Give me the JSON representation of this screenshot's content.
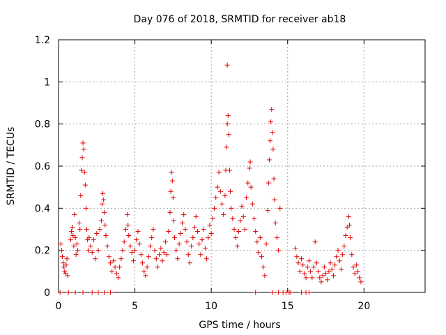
{
  "chart_data": {
    "type": "scatter",
    "title": "Day 076 of 2018, SRMTID for receiver ab18",
    "xlabel": "GPS time / hours",
    "ylabel": "SRMTID / TECUs",
    "xlim": [
      0,
      24
    ],
    "ylim": [
      0,
      1.2
    ],
    "xticks": [
      0,
      5,
      10,
      15,
      20
    ],
    "yticks": [
      0,
      0.2,
      0.4,
      0.6,
      0.8,
      1,
      1.2
    ],
    "xtick_labels": [
      "0",
      "5",
      "10",
      "15",
      "20"
    ],
    "ytick_labels": [
      "0",
      "0.2",
      "0.4",
      "0.6",
      "0.8",
      "1",
      "1.2"
    ],
    "grid": true,
    "marker": "+",
    "color": "#e00000",
    "series": [
      {
        "name": "SRMTID",
        "points": [
          [
            0.15,
            0.23
          ],
          [
            0.2,
            0.2
          ],
          [
            0.25,
            0.17
          ],
          [
            0.3,
            0.14
          ],
          [
            0.35,
            0.12
          ],
          [
            0.4,
            0.1
          ],
          [
            0.45,
            0.09
          ],
          [
            0.5,
            0.13
          ],
          [
            0.55,
            0.16
          ],
          [
            0.6,
            0.08
          ],
          [
            0.8,
            0.25
          ],
          [
            0.85,
            0.29
          ],
          [
            0.9,
            0.31
          ],
          [
            0.95,
            0.27
          ],
          [
            1.0,
            0.22
          ],
          [
            1.05,
            0.37
          ],
          [
            1.1,
            0.26
          ],
          [
            1.15,
            0.18
          ],
          [
            1.2,
            0.23
          ],
          [
            1.25,
            0.2
          ],
          [
            1.35,
            0.33
          ],
          [
            1.4,
            0.3
          ],
          [
            1.45,
            0.46
          ],
          [
            1.5,
            0.58
          ],
          [
            1.55,
            0.64
          ],
          [
            1.6,
            0.71
          ],
          [
            1.65,
            0.68
          ],
          [
            1.7,
            0.57
          ],
          [
            1.75,
            0.51
          ],
          [
            1.8,
            0.4
          ],
          [
            1.85,
            0.3
          ],
          [
            1.9,
            0.25
          ],
          [
            1.95,
            0.2
          ],
          [
            2.0,
            0.26
          ],
          [
            2.1,
            0.22
          ],
          [
            2.2,
            0.19
          ],
          [
            2.3,
            0.25
          ],
          [
            2.4,
            0.16
          ],
          [
            2.5,
            0.28
          ],
          [
            2.6,
            0.2
          ],
          [
            2.7,
            0.3
          ],
          [
            2.8,
            0.34
          ],
          [
            2.85,
            0.42
          ],
          [
            2.9,
            0.47
          ],
          [
            2.95,
            0.44
          ],
          [
            3.0,
            0.38
          ],
          [
            3.05,
            0.32
          ],
          [
            3.1,
            0.27
          ],
          [
            3.2,
            0.22
          ],
          [
            3.3,
            0.17
          ],
          [
            3.4,
            0.14
          ],
          [
            3.5,
            0.1
          ],
          [
            3.6,
            0.15
          ],
          [
            3.7,
            0.12
          ],
          [
            3.8,
            0.09
          ],
          [
            3.9,
            0.07
          ],
          [
            4.0,
            0.12
          ],
          [
            4.1,
            0.16
          ],
          [
            4.2,
            0.2
          ],
          [
            4.3,
            0.24
          ],
          [
            4.4,
            0.3
          ],
          [
            4.5,
            0.37
          ],
          [
            4.55,
            0.32
          ],
          [
            4.6,
            0.27
          ],
          [
            4.7,
            0.22
          ],
          [
            4.8,
            0.19
          ],
          [
            4.9,
            0.15
          ],
          [
            5.0,
            0.2
          ],
          [
            5.1,
            0.25
          ],
          [
            5.2,
            0.29
          ],
          [
            5.3,
            0.23
          ],
          [
            5.4,
            0.18
          ],
          [
            5.5,
            0.14
          ],
          [
            5.6,
            0.1
          ],
          [
            5.7,
            0.08
          ],
          [
            5.8,
            0.12
          ],
          [
            5.9,
            0.17
          ],
          [
            6.0,
            0.22
          ],
          [
            6.1,
            0.26
          ],
          [
            6.2,
            0.3
          ],
          [
            6.3,
            0.2
          ],
          [
            6.4,
            0.16
          ],
          [
            6.5,
            0.12
          ],
          [
            6.6,
            0.18
          ],
          [
            6.7,
            0.21
          ],
          [
            6.8,
            0.15
          ],
          [
            6.9,
            0.19
          ],
          [
            7.0,
            0.24
          ],
          [
            7.1,
            0.18
          ],
          [
            7.2,
            0.29
          ],
          [
            7.3,
            0.38
          ],
          [
            7.35,
            0.48
          ],
          [
            7.4,
            0.57
          ],
          [
            7.45,
            0.53
          ],
          [
            7.5,
            0.45
          ],
          [
            7.55,
            0.34
          ],
          [
            7.6,
            0.26
          ],
          [
            7.7,
            0.2
          ],
          [
            7.8,
            0.16
          ],
          [
            7.9,
            0.23
          ],
          [
            8.0,
            0.28
          ],
          [
            8.1,
            0.33
          ],
          [
            8.2,
            0.37
          ],
          [
            8.3,
            0.3
          ],
          [
            8.4,
            0.24
          ],
          [
            8.5,
            0.18
          ],
          [
            8.6,
            0.14
          ],
          [
            8.7,
            0.22
          ],
          [
            8.8,
            0.26
          ],
          [
            8.9,
            0.31
          ],
          [
            9.0,
            0.36
          ],
          [
            9.1,
            0.29
          ],
          [
            9.2,
            0.23
          ],
          [
            9.3,
            0.18
          ],
          [
            9.4,
            0.25
          ],
          [
            9.5,
            0.3
          ],
          [
            9.6,
            0.21
          ],
          [
            9.7,
            0.16
          ],
          [
            9.8,
            0.26
          ],
          [
            9.9,
            0.32
          ],
          [
            10.0,
            0.28
          ],
          [
            10.1,
            0.35
          ],
          [
            10.2,
            0.4
          ],
          [
            10.3,
            0.45
          ],
          [
            10.4,
            0.5
          ],
          [
            10.5,
            0.57
          ],
          [
            10.6,
            0.48
          ],
          [
            10.7,
            0.42
          ],
          [
            10.8,
            0.37
          ],
          [
            10.9,
            0.46
          ],
          [
            10.95,
            0.58
          ],
          [
            11.0,
            0.69
          ],
          [
            11.05,
            0.8
          ],
          [
            11.1,
            0.84
          ],
          [
            11.15,
            0.75
          ],
          [
            11.2,
            0.58
          ],
          [
            11.25,
            0.48
          ],
          [
            11.3,
            0.4
          ],
          [
            11.4,
            0.35
          ],
          [
            11.5,
            0.3
          ],
          [
            11.05,
            1.08
          ],
          [
            11.6,
            0.26
          ],
          [
            11.7,
            0.22
          ],
          [
            11.8,
            0.29
          ],
          [
            11.9,
            0.34
          ],
          [
            12.0,
            0.41
          ],
          [
            12.1,
            0.36
          ],
          [
            12.2,
            0.3
          ],
          [
            12.3,
            0.45
          ],
          [
            12.4,
            0.52
          ],
          [
            12.5,
            0.59
          ],
          [
            12.55,
            0.62
          ],
          [
            12.6,
            0.5
          ],
          [
            12.7,
            0.42
          ],
          [
            12.8,
            0.35
          ],
          [
            12.9,
            0.29
          ],
          [
            13.0,
            0.24
          ],
          [
            13.1,
            0.19
          ],
          [
            13.2,
            0.26
          ],
          [
            13.3,
            0.17
          ],
          [
            13.4,
            0.12
          ],
          [
            13.5,
            0.08
          ],
          [
            13.6,
            0.23
          ],
          [
            13.7,
            0.39
          ],
          [
            13.75,
            0.52
          ],
          [
            13.8,
            0.63
          ],
          [
            13.85,
            0.72
          ],
          [
            13.9,
            0.81
          ],
          [
            13.95,
            0.87
          ],
          [
            14.0,
            0.76
          ],
          [
            14.05,
            0.68
          ],
          [
            14.1,
            0.54
          ],
          [
            14.15,
            0.44
          ],
          [
            14.2,
            0.33
          ],
          [
            14.3,
            0.26
          ],
          [
            14.4,
            0.2
          ],
          [
            14.5,
            0.4
          ],
          [
            15.5,
            0.21
          ],
          [
            15.6,
            0.17
          ],
          [
            15.7,
            0.14
          ],
          [
            15.8,
            0.1
          ],
          [
            15.9,
            0.16
          ],
          [
            16.0,
            0.13
          ],
          [
            16.1,
            0.09
          ],
          [
            16.2,
            0.07
          ],
          [
            16.3,
            0.12
          ],
          [
            16.4,
            0.15
          ],
          [
            16.5,
            0.1
          ],
          [
            16.6,
            0.07
          ],
          [
            16.7,
            0.12
          ],
          [
            16.8,
            0.24
          ],
          [
            16.9,
            0.14
          ],
          [
            17.0,
            0.1
          ],
          [
            17.1,
            0.07
          ],
          [
            17.2,
            0.05
          ],
          [
            17.3,
            0.08
          ],
          [
            17.4,
            0.12
          ],
          [
            17.5,
            0.09
          ],
          [
            17.6,
            0.06
          ],
          [
            17.7,
            0.1
          ],
          [
            17.8,
            0.14
          ],
          [
            17.9,
            0.11
          ],
          [
            18.0,
            0.08
          ],
          [
            18.1,
            0.13
          ],
          [
            18.2,
            0.17
          ],
          [
            18.3,
            0.2
          ],
          [
            18.4,
            0.15
          ],
          [
            18.5,
            0.11
          ],
          [
            18.6,
            0.18
          ],
          [
            18.7,
            0.22
          ],
          [
            18.8,
            0.27
          ],
          [
            18.9,
            0.31
          ],
          [
            19.0,
            0.36
          ],
          [
            19.05,
            0.32
          ],
          [
            19.1,
            0.26
          ],
          [
            19.2,
            0.18
          ],
          [
            19.3,
            0.12
          ],
          [
            19.4,
            0.09
          ],
          [
            19.5,
            0.13
          ],
          [
            19.6,
            0.1
          ],
          [
            19.7,
            0.07
          ],
          [
            19.8,
            0.05
          ],
          [
            0.1,
            0
          ],
          [
            0.65,
            0
          ],
          [
            1.1,
            0
          ],
          [
            1.6,
            0
          ],
          [
            2.2,
            0
          ],
          [
            2.6,
            0
          ],
          [
            3.0,
            0
          ],
          [
            3.4,
            0
          ],
          [
            12.9,
            0
          ],
          [
            14.0,
            0
          ],
          [
            14.4,
            0
          ],
          [
            14.7,
            0
          ],
          [
            14.9,
            0
          ],
          [
            15.1,
            0
          ],
          [
            15.2,
            0
          ],
          [
            15.9,
            0
          ],
          [
            16.2,
            0
          ],
          [
            16.4,
            0
          ]
        ]
      }
    ]
  }
}
